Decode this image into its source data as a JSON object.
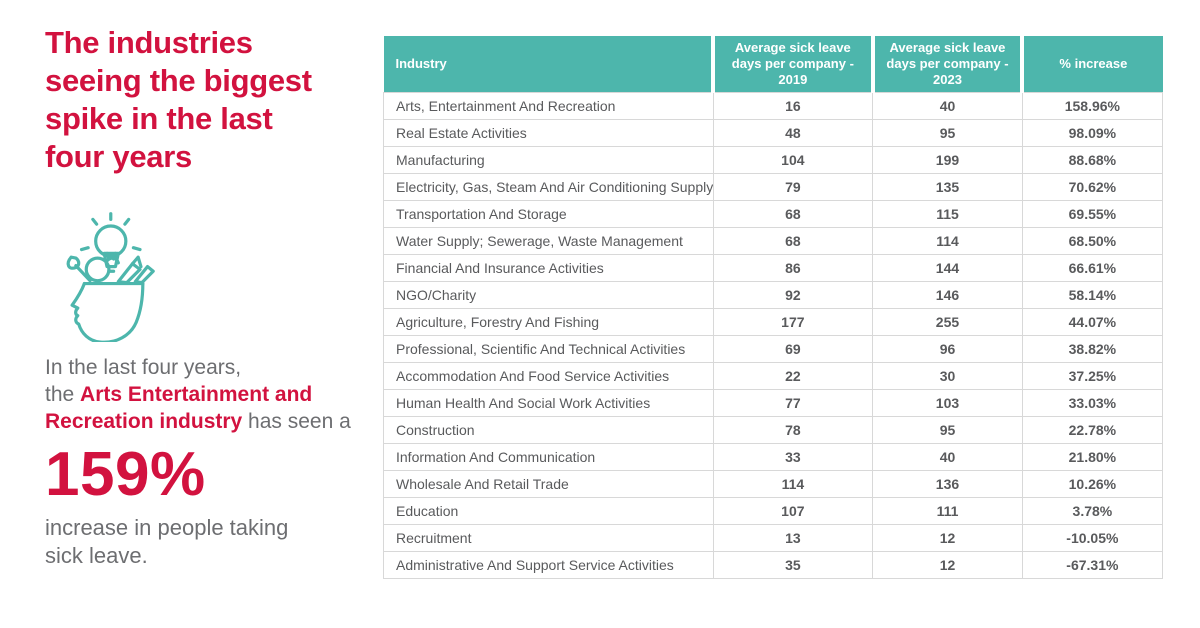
{
  "colors": {
    "accent_red": "#d2123f",
    "teal": "#4db6ac",
    "gray_text": "#6d6e71",
    "table_text": "#595a5c",
    "table_border": "#d8d8d8",
    "header_text": "#ffffff"
  },
  "left": {
    "title_lines": [
      "The industries",
      "seeing the biggest",
      "spike in the last",
      "four years"
    ],
    "icon": "creative-head-icon",
    "paragraph": {
      "line1": "In the last four years,",
      "pre": "the ",
      "highlight": "Arts Entertainment and Recreation industry",
      "post": " has seen a"
    },
    "stat_value": "159%",
    "caption_lines": [
      "increase in people taking",
      "sick leave."
    ]
  },
  "chart_data": {
    "type": "table",
    "title": "The industries seeing the biggest spike in the last four years",
    "columns": [
      "Industry",
      "Average sick leave days per company - 2019",
      "Average sick leave days per company - 2023",
      "% increase"
    ],
    "rows": [
      [
        "Arts, Entertainment And Recreation",
        16,
        40,
        "158.96%"
      ],
      [
        "Real Estate Activities",
        48,
        95,
        "98.09%"
      ],
      [
        "Manufacturing",
        104,
        199,
        "88.68%"
      ],
      [
        "Electricity, Gas, Steam And Air Conditioning Supply",
        79,
        135,
        "70.62%"
      ],
      [
        "Transportation And Storage",
        68,
        115,
        "69.55%"
      ],
      [
        "Water Supply; Sewerage, Waste Management",
        68,
        114,
        "68.50%"
      ],
      [
        "Financial And Insurance Activities",
        86,
        144,
        "66.61%"
      ],
      [
        "NGO/Charity",
        92,
        146,
        "58.14%"
      ],
      [
        "Agriculture, Forestry And Fishing",
        177,
        255,
        "44.07%"
      ],
      [
        "Professional, Scientific And Technical Activities",
        69,
        96,
        "38.82%"
      ],
      [
        "Accommodation And Food Service Activities",
        22,
        30,
        "37.25%"
      ],
      [
        "Human Health And Social Work Activities",
        77,
        103,
        "33.03%"
      ],
      [
        "Construction",
        78,
        95,
        "22.78%"
      ],
      [
        "Information And Communication",
        33,
        40,
        "21.80%"
      ],
      [
        "Wholesale And Retail Trade",
        114,
        136,
        "10.26%"
      ],
      [
        "Education",
        107,
        111,
        "3.78%"
      ],
      [
        "Recruitment",
        13,
        12,
        "-10.05%"
      ],
      [
        "Administrative And Support Service Activities",
        35,
        12,
        "-67.31%"
      ]
    ]
  }
}
